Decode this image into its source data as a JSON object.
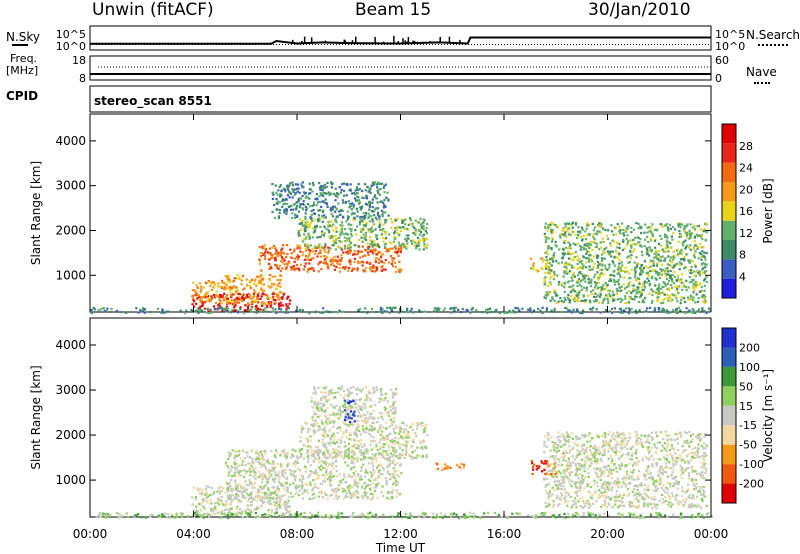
{
  "header": {
    "station": "Unwin (fitACF)",
    "beam": "Beam 15",
    "date": "30/Jan/2010"
  },
  "left_labels": {
    "nsky": "N.Sky",
    "freq": "Freq.",
    "freq_unit": "[MHz]",
    "cpid": "CPID"
  },
  "right_labels": {
    "nsearch": "N.Search",
    "nave": "Nave"
  },
  "colors": {
    "power": [
      "#1f1fe0",
      "#3a5fc0",
      "#3d8a66",
      "#63b06a",
      "#e8d21a",
      "#f39a1a",
      "#f46a10",
      "#e8261a",
      "#e00000"
    ],
    "velocity": [
      "#e00000",
      "#f05a10",
      "#f39a1a",
      "#f2d8a0",
      "#c8c8c4",
      "#8fd060",
      "#3a9a3a",
      "#2c5fb8",
      "#1f2fd0"
    ]
  },
  "chart_data": [
    {
      "type": "line",
      "name": "noise-panel",
      "yticks_left": [
        "10^5",
        "10^0"
      ],
      "yticks_right": [
        "10^5",
        "10^0"
      ],
      "series": [
        {
          "name": "N.Sky",
          "x": [
            0,
            7,
            7.2,
            8,
            9,
            10,
            12,
            13.5,
            14.6,
            14.7,
            24
          ],
          "y": [
            1.2,
            1.2,
            2.0,
            1.3,
            1.6,
            1.4,
            1.3,
            1.6,
            1.3,
            3.0,
            3.0
          ]
        },
        {
          "name": "N.Search",
          "x": [
            0,
            24
          ],
          "y": [
            1.0,
            1.0
          ]
        }
      ]
    },
    {
      "type": "line",
      "name": "freq-panel",
      "yticks_left": [
        "18",
        "8"
      ],
      "yticks_right": [
        "60",
        "0"
      ],
      "series": [
        {
          "name": "Freq.",
          "x": [
            0,
            24
          ],
          "y": [
            9,
            9
          ]
        },
        {
          "name": "Nave",
          "x": [
            0,
            24
          ],
          "y": [
            38,
            38
          ]
        }
      ]
    },
    {
      "type": "heatmap",
      "name": "power-panel",
      "cpid_text": "stereo_scan 8551",
      "ylabel": "Slant Range [km]",
      "yticks": [
        "1000",
        "2000",
        "3000",
        "4000"
      ],
      "ylim": [
        180,
        4600
      ],
      "xlim": [
        0,
        24
      ],
      "colorbar": {
        "label": "Power [dB]",
        "ticks": [
          "4",
          "8",
          "12",
          "16",
          "20",
          "24",
          "28"
        ]
      },
      "regions": [
        {
          "t0": 3.9,
          "t1": 7.7,
          "r0": 230,
          "r1": 620,
          "level": 8
        },
        {
          "t0": 3.9,
          "t1": 5.2,
          "r0": 400,
          "r1": 900,
          "level": 5
        },
        {
          "t0": 5.2,
          "t1": 7.4,
          "r0": 380,
          "r1": 1050,
          "level": 5
        },
        {
          "t0": 6.5,
          "t1": 12.0,
          "r0": 1100,
          "r1": 1700,
          "level": 6
        },
        {
          "t0": 8.0,
          "t1": 13.0,
          "r0": 1600,
          "r1": 2300,
          "level": 3
        },
        {
          "t0": 7.0,
          "t1": 11.5,
          "r0": 2300,
          "r1": 3100,
          "level": 2
        },
        {
          "t0": 17.0,
          "t1": 17.8,
          "r0": 1100,
          "r1": 1400,
          "level": 4
        },
        {
          "t0": 17.5,
          "t1": 23.8,
          "r0": 400,
          "r1": 2200,
          "level": 3
        },
        {
          "t0": 0.0,
          "t1": 24.0,
          "r0": 180,
          "r1": 300,
          "level": 2
        }
      ]
    },
    {
      "type": "heatmap",
      "name": "velocity-panel",
      "ylabel": "Slant Range [km]",
      "yticks": [
        "1000",
        "2000",
        "3000",
        "4000"
      ],
      "ylim": [
        180,
        4600
      ],
      "xlim": [
        0,
        24
      ],
      "xticks": [
        "00:00",
        "04:00",
        "08:00",
        "12:00",
        "16:00",
        "20:00",
        "00:00"
      ],
      "xlabel": "Time UT",
      "colorbar": {
        "label": "Velocity [m s⁻¹]",
        "ticks": [
          "-200",
          "-100",
          "-50",
          "-15",
          "15",
          "50",
          "100",
          "200"
        ]
      },
      "regions": [
        {
          "t0": 3.9,
          "t1": 7.7,
          "r0": 230,
          "r1": 900,
          "level": 4
        },
        {
          "t0": 5.2,
          "t1": 12.0,
          "r0": 600,
          "r1": 1700,
          "level": 4
        },
        {
          "t0": 8.0,
          "t1": 13.0,
          "r0": 1500,
          "r1": 2300,
          "level": 4
        },
        {
          "t0": 8.5,
          "t1": 11.8,
          "r0": 2300,
          "r1": 3100,
          "level": 4
        },
        {
          "t0": 17.5,
          "t1": 23.8,
          "r0": 400,
          "r1": 2100,
          "level": 4
        },
        {
          "t0": 17.0,
          "t1": 17.6,
          "r0": 1150,
          "r1": 1450,
          "level": 0
        },
        {
          "t0": 17.6,
          "t1": 18.0,
          "r0": 1150,
          "r1": 1450,
          "level": 2
        },
        {
          "t0": 13.3,
          "t1": 14.5,
          "r0": 1250,
          "r1": 1400,
          "level": 2
        },
        {
          "t0": 9.8,
          "t1": 10.2,
          "r0": 2300,
          "r1": 2800,
          "level": 8
        },
        {
          "t0": 0.0,
          "t1": 24.0,
          "r0": 180,
          "r1": 300,
          "level": 5
        }
      ]
    }
  ]
}
